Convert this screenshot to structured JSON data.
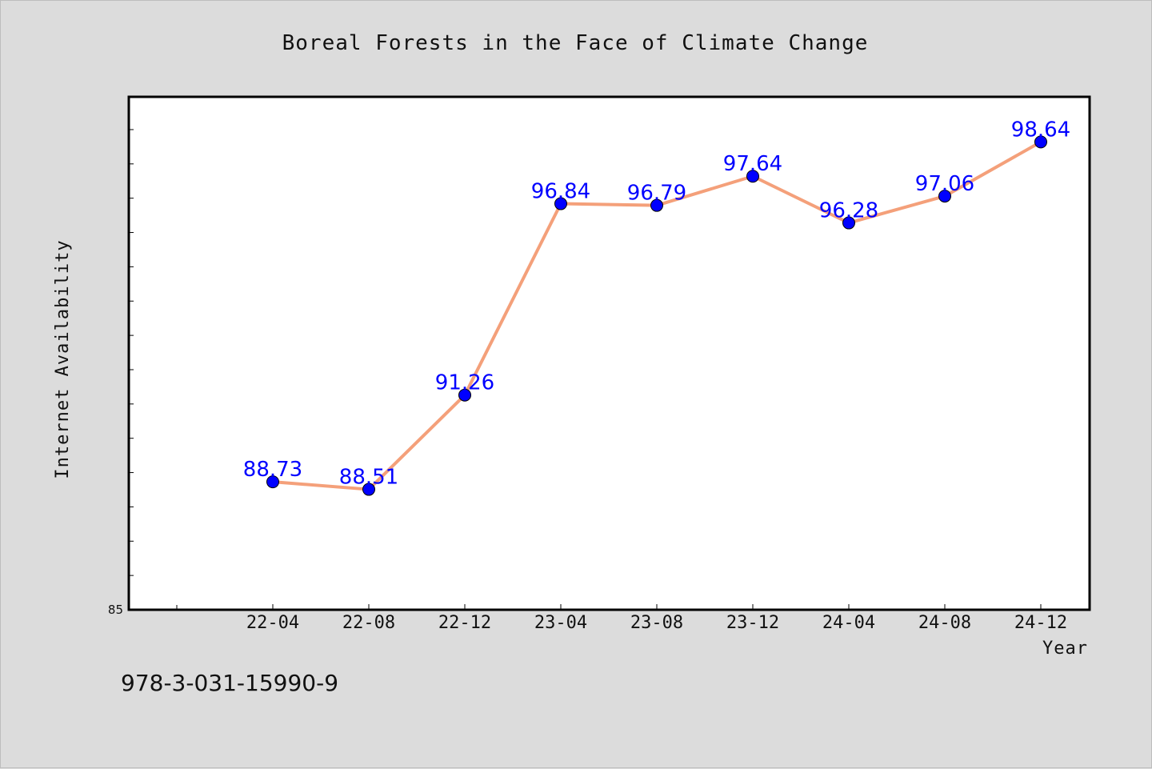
{
  "chart_data": {
    "type": "line",
    "title": "Boreal Forests in the Face of Climate Change",
    "xlabel": "Year",
    "ylabel": "Internet Availability",
    "categories": [
      "22-04",
      "22-08",
      "22-12",
      "23-04",
      "23-08",
      "23-12",
      "24-04",
      "24-08",
      "24-12"
    ],
    "series": [
      {
        "values": [
          88.73,
          88.51,
          91.26,
          96.84,
          96.79,
          97.64,
          96.28,
          97.06,
          98.64
        ]
      }
    ],
    "data_labels": [
      "88.73",
      "88.51",
      "91.26",
      "96.84",
      "96.79",
      "97.64",
      "96.28",
      "97.06",
      "98.64"
    ],
    "ylim": [
      85,
      100
    ],
    "y_tick_label": "85",
    "grid": false,
    "colors": {
      "line": "#f4a07a",
      "marker": "#0000ff",
      "label": "#0000ff"
    }
  },
  "footer": {
    "isbn": "978-3-031-15990-9"
  }
}
